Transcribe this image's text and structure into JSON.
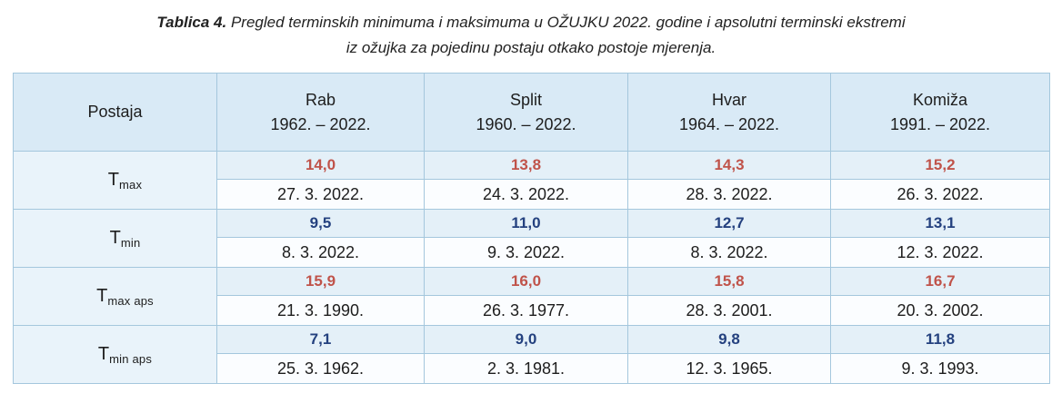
{
  "title": {
    "label": "Tablica 4.",
    "line1": "Pregled terminskih minimuma i maksimuma u OŽUJKU 2022. godine i apsolutni terminski ekstremi",
    "line2": "iz ožujka za pojedinu postaju otkako postoje mjerenja."
  },
  "colors": {
    "max_value_text": "#c0534a",
    "min_value_text": "#24417f",
    "header_background": "#d9eaf6",
    "label_cell_background": "#e9f3fa",
    "value_row_background": "#e4f0f8",
    "date_row_background": "#fbfdff",
    "table_border": "#a4c7dd"
  },
  "table": {
    "station_header": "Postaja",
    "stations": [
      {
        "name": "Rab",
        "period": "1962. – 2022."
      },
      {
        "name": "Split",
        "period": "1960. – 2022."
      },
      {
        "name": "Hvar",
        "period": "1964. – 2022."
      },
      {
        "name": "Komiža",
        "period": "1991. – 2022."
      }
    ],
    "rows": [
      {
        "label_base": "T",
        "label_sub": "max",
        "kind": "max",
        "values": [
          "14,0",
          "13,8",
          "14,3",
          "15,2"
        ],
        "dates": [
          "27. 3. 2022.",
          "24. 3. 2022.",
          "28. 3. 2022.",
          "26. 3. 2022."
        ]
      },
      {
        "label_base": "T",
        "label_sub": "min",
        "kind": "min",
        "values": [
          "9,5",
          "11,0",
          "12,7",
          "13,1"
        ],
        "dates": [
          "8. 3. 2022.",
          "9. 3. 2022.",
          "8. 3. 2022.",
          "12. 3. 2022."
        ]
      },
      {
        "label_base": "T",
        "label_sub": "max aps",
        "kind": "max",
        "values": [
          "15,9",
          "16,0",
          "15,8",
          "16,7"
        ],
        "dates": [
          "21. 3. 1990.",
          "26. 3. 1977.",
          "28. 3. 2001.",
          "20. 3. 2002."
        ]
      },
      {
        "label_base": "T",
        "label_sub": "min aps",
        "kind": "min",
        "values": [
          "7,1",
          "9,0",
          "9,8",
          "11,8"
        ],
        "dates": [
          "25. 3. 1962.",
          "2. 3. 1981.",
          "12. 3. 1965.",
          "9. 3. 1993."
        ]
      }
    ]
  }
}
